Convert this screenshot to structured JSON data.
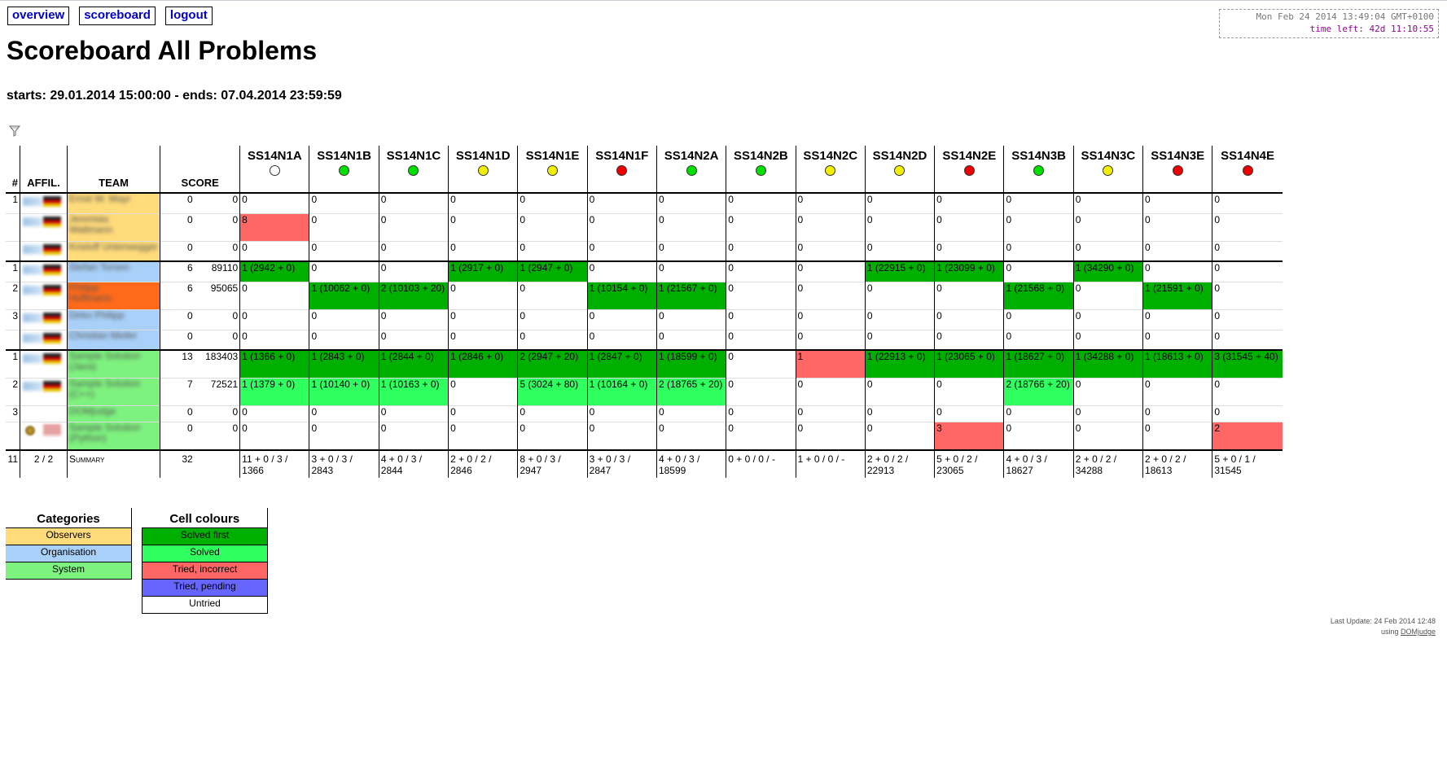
{
  "nav": [
    {
      "label": "overview"
    },
    {
      "label": "scoreboard"
    },
    {
      "label": "logout"
    }
  ],
  "clock": {
    "now": "Mon Feb 24 2014 13:49:04 GMT+0100",
    "left": "time left: 42d 11:10:55"
  },
  "title": "Scoreboard All Problems",
  "times": "starts: 29.01.2014 15:00:00 - ends: 07.04.2014 23:59:59",
  "headers": {
    "rank": "#",
    "affil": "AFFIL.",
    "team": "TEAM",
    "score": "SCORE"
  },
  "problems": [
    {
      "name": "SS14N1A",
      "color": "#ffffff"
    },
    {
      "name": "SS14N1B",
      "color": "#00e000"
    },
    {
      "name": "SS14N1C",
      "color": "#00e000"
    },
    {
      "name": "SS14N1D",
      "color": "#f2f000"
    },
    {
      "name": "SS14N1E",
      "color": "#f2f000"
    },
    {
      "name": "SS14N1F",
      "color": "#ee0000"
    },
    {
      "name": "SS14N2A",
      "color": "#00e000"
    },
    {
      "name": "SS14N2B",
      "color": "#00e000"
    },
    {
      "name": "SS14N2C",
      "color": "#f2f000"
    },
    {
      "name": "SS14N2D",
      "color": "#f2f000"
    },
    {
      "name": "SS14N2E",
      "color": "#ee0000"
    },
    {
      "name": "SS14N3B",
      "color": "#00e000"
    },
    {
      "name": "SS14N3C",
      "color": "#f2f000"
    },
    {
      "name": "SS14N3E",
      "color": "#ee0000"
    },
    {
      "name": "SS14N4E",
      "color": "#ee0000"
    }
  ],
  "rows": [
    {
      "rank": "1",
      "cat": "obs",
      "flag": "de",
      "logo": "blur",
      "team": [
        "Ernst W. Mayr"
      ],
      "points": "0",
      "time": "0",
      "h": 25,
      "end": false,
      "cells": [
        [
          "0",
          ""
        ],
        [
          "0",
          ""
        ],
        [
          "0",
          ""
        ],
        [
          "0",
          ""
        ],
        [
          "0",
          ""
        ],
        [
          "0",
          ""
        ],
        [
          "0",
          ""
        ],
        [
          "0",
          ""
        ],
        [
          "0",
          ""
        ],
        [
          "0",
          ""
        ],
        [
          "0",
          ""
        ],
        [
          "0",
          ""
        ],
        [
          "0",
          ""
        ],
        [
          "0",
          ""
        ],
        [
          "0",
          ""
        ]
      ]
    },
    {
      "rank": "",
      "cat": "obs",
      "flag": "de",
      "logo": "blur",
      "team": [
        "Jeremias",
        "Waltmann"
      ],
      "points": "0",
      "time": "0",
      "h": 34,
      "end": false,
      "cells": [
        [
          "8",
          "ti"
        ],
        [
          "0",
          ""
        ],
        [
          "0",
          ""
        ],
        [
          "0",
          ""
        ],
        [
          "0",
          ""
        ],
        [
          "0",
          ""
        ],
        [
          "0",
          ""
        ],
        [
          "0",
          ""
        ],
        [
          "0",
          ""
        ],
        [
          "0",
          ""
        ],
        [
          "0",
          ""
        ],
        [
          "0",
          ""
        ],
        [
          "0",
          ""
        ],
        [
          "0",
          ""
        ],
        [
          "0",
          ""
        ]
      ]
    },
    {
      "rank": "",
      "cat": "obs",
      "flag": "de",
      "logo": "blur",
      "team": [
        "Kristoff Unterwegger"
      ],
      "points": "0",
      "time": "0",
      "h": 25,
      "end": true,
      "cells": [
        [
          "0",
          ""
        ],
        [
          "0",
          ""
        ],
        [
          "0",
          ""
        ],
        [
          "0",
          ""
        ],
        [
          "0",
          ""
        ],
        [
          "0",
          ""
        ],
        [
          "0",
          ""
        ],
        [
          "0",
          ""
        ],
        [
          "0",
          ""
        ],
        [
          "0",
          ""
        ],
        [
          "0",
          ""
        ],
        [
          "0",
          ""
        ],
        [
          "0",
          ""
        ],
        [
          "0",
          ""
        ],
        [
          "0",
          ""
        ]
      ]
    },
    {
      "rank": "1",
      "cat": "org",
      "flag": "de",
      "logo": "blur",
      "team": [
        "Stefan Torsen"
      ],
      "points": "6",
      "time": "89110",
      "h": 25,
      "end": false,
      "cells": [
        [
          "1 (2942 + 0)",
          "sf"
        ],
        [
          "0",
          ""
        ],
        [
          "0",
          ""
        ],
        [
          "1 (2917 + 0)",
          "sf"
        ],
        [
          "1 (2947 + 0)",
          "sf"
        ],
        [
          "0",
          ""
        ],
        [
          "0",
          ""
        ],
        [
          "0",
          ""
        ],
        [
          "0",
          ""
        ],
        [
          "1 (22915 + 0)",
          "sf"
        ],
        [
          "1 (23099 + 0)",
          "sf"
        ],
        [
          "0",
          ""
        ],
        [
          "1 (34290 + 0)",
          "sf"
        ],
        [
          "0",
          ""
        ],
        [
          "0",
          ""
        ]
      ]
    },
    {
      "rank": "2",
      "cat": "hl",
      "flag": "de",
      "logo": "blur",
      "team": [
        "Philipp",
        "Hoffmann"
      ],
      "points": "6",
      "time": "95065",
      "h": 34,
      "end": false,
      "cells": [
        [
          "0",
          ""
        ],
        [
          "1 (10062 + 0)",
          "sf"
        ],
        [
          "2 (10103 + 20)",
          "sf"
        ],
        [
          "0",
          ""
        ],
        [
          "0",
          ""
        ],
        [
          "1 (10154 + 0)",
          "sf"
        ],
        [
          "1 (21567 + 0)",
          "sf"
        ],
        [
          "0",
          ""
        ],
        [
          "0",
          ""
        ],
        [
          "0",
          ""
        ],
        [
          "0",
          ""
        ],
        [
          "1 (21568 + 0)",
          "sf"
        ],
        [
          "0",
          ""
        ],
        [
          "1 (21591 + 0)",
          "sf"
        ],
        [
          "0",
          ""
        ]
      ]
    },
    {
      "rank": "3",
      "cat": "org",
      "flag": "de",
      "logo": "blur",
      "team": [
        "Dirko Philipp"
      ],
      "points": "0",
      "time": "0",
      "h": 25,
      "end": false,
      "cells": [
        [
          "0",
          ""
        ],
        [
          "0",
          ""
        ],
        [
          "0",
          ""
        ],
        [
          "0",
          ""
        ],
        [
          "0",
          ""
        ],
        [
          "0",
          ""
        ],
        [
          "0",
          ""
        ],
        [
          "0",
          ""
        ],
        [
          "0",
          ""
        ],
        [
          "0",
          ""
        ],
        [
          "0",
          ""
        ],
        [
          "0",
          ""
        ],
        [
          "0",
          ""
        ],
        [
          "0",
          ""
        ],
        [
          "0",
          ""
        ]
      ]
    },
    {
      "rank": "",
      "cat": "org",
      "flag": "de",
      "logo": "blur",
      "team": [
        "Christian Meiler"
      ],
      "points": "0",
      "time": "0",
      "h": 25,
      "end": true,
      "cells": [
        [
          "0",
          ""
        ],
        [
          "0",
          ""
        ],
        [
          "0",
          ""
        ],
        [
          "0",
          ""
        ],
        [
          "0",
          ""
        ],
        [
          "0",
          ""
        ],
        [
          "0",
          ""
        ],
        [
          "0",
          ""
        ],
        [
          "0",
          ""
        ],
        [
          "0",
          ""
        ],
        [
          "0",
          ""
        ],
        [
          "0",
          ""
        ],
        [
          "0",
          ""
        ],
        [
          "0",
          ""
        ],
        [
          "0",
          ""
        ]
      ]
    },
    {
      "rank": "1",
      "cat": "sys",
      "flag": "de",
      "logo": "blur",
      "team": [
        "Sample Solution",
        "(Java)"
      ],
      "points": "13",
      "time": "183403",
      "h": 34,
      "end": false,
      "cells": [
        [
          "1 (1366 + 0)",
          "sf"
        ],
        [
          "1 (2843 + 0)",
          "sf"
        ],
        [
          "1 (2844 + 0)",
          "sf"
        ],
        [
          "1 (2846 + 0)",
          "sf"
        ],
        [
          "2 (2947 + 20)",
          "sf"
        ],
        [
          "1 (2847 + 0)",
          "sf"
        ],
        [
          "1 (18599 + 0)",
          "sf"
        ],
        [
          "0",
          ""
        ],
        [
          "1",
          "ti"
        ],
        [
          "1 (22913 + 0)",
          "sf"
        ],
        [
          "1 (23065 + 0)",
          "sf"
        ],
        [
          "1 (18627 + 0)",
          "sf"
        ],
        [
          "1 (34288 + 0)",
          "sf"
        ],
        [
          "1 (18613 + 0)",
          "sf"
        ],
        [
          "3 (31545 + 40)",
          "sf"
        ]
      ]
    },
    {
      "rank": "2",
      "cat": "sys",
      "flag": "de",
      "logo": "blur",
      "team": [
        "Sample Solution",
        "(C++)"
      ],
      "points": "7",
      "time": "72521",
      "h": 34,
      "end": false,
      "cells": [
        [
          "1 (1379 + 0)",
          "s"
        ],
        [
          "1 (10140 + 0)",
          "s"
        ],
        [
          "1 (10163 + 0)",
          "s"
        ],
        [
          "0",
          ""
        ],
        [
          "5 (3024 + 80)",
          "s"
        ],
        [
          "1 (10164 + 0)",
          "s"
        ],
        [
          "2 (18765 + 20)",
          "s"
        ],
        [
          "0",
          ""
        ],
        [
          "0",
          ""
        ],
        [
          "0",
          ""
        ],
        [
          "0",
          ""
        ],
        [
          "2 (18766 + 20)",
          "s"
        ],
        [
          "0",
          ""
        ],
        [
          "0",
          ""
        ],
        [
          "0",
          ""
        ]
      ]
    },
    {
      "rank": "3",
      "cat": "sys",
      "flag": "none",
      "logo": "none",
      "team": [
        "DOMjudge"
      ],
      "points": "0",
      "time": "0",
      "h": 20,
      "end": false,
      "cells": [
        [
          "0",
          ""
        ],
        [
          "0",
          ""
        ],
        [
          "0",
          ""
        ],
        [
          "0",
          ""
        ],
        [
          "0",
          ""
        ],
        [
          "0",
          ""
        ],
        [
          "0",
          ""
        ],
        [
          "0",
          ""
        ],
        [
          "0",
          ""
        ],
        [
          "0",
          ""
        ],
        [
          "0",
          ""
        ],
        [
          "0",
          ""
        ],
        [
          "0",
          ""
        ],
        [
          "0",
          ""
        ],
        [
          "0",
          ""
        ]
      ]
    },
    {
      "rank": "",
      "cat": "sys",
      "flag": "us",
      "logo": "seal",
      "team": [
        "Sample Solution",
        "(Python)"
      ],
      "points": "0",
      "time": "0",
      "h": 35,
      "end": true,
      "cells": [
        [
          "0",
          ""
        ],
        [
          "0",
          ""
        ],
        [
          "0",
          ""
        ],
        [
          "0",
          ""
        ],
        [
          "0",
          ""
        ],
        [
          "0",
          ""
        ],
        [
          "0",
          ""
        ],
        [
          "0",
          ""
        ],
        [
          "0",
          ""
        ],
        [
          "0",
          ""
        ],
        [
          "3",
          "ti"
        ],
        [
          "0",
          ""
        ],
        [
          "0",
          ""
        ],
        [
          "0",
          ""
        ],
        [
          "2",
          "ti"
        ]
      ]
    }
  ],
  "summary": {
    "rank": "11",
    "affil": "2 / 2",
    "team": "Summary",
    "points": "32",
    "cells": [
      "11 + 0 / 3 / 1366",
      "3 + 0 / 3 / 2843",
      "4 + 0 / 3 / 2844",
      "2 + 0 / 2 / 2846",
      "8 + 0 / 3 / 2947",
      "3 + 0 / 3 / 2847",
      "4 + 0 / 3 / 18599",
      "0 + 0 / 0 / -",
      "1 + 0 / 0 / -",
      "2 + 0 / 2 / 22913",
      "5 + 0 / 2 / 23065",
      "4 + 0 / 3 / 18627",
      "2 + 0 / 2 / 34288",
      "2 + 0 / 2 / 18613",
      "5 + 0 / 1 / 31545"
    ]
  },
  "legend_categories": {
    "title": "Categories",
    "items": [
      {
        "label": "Observers",
        "color": "#ffdb7a"
      },
      {
        "label": "Organisation",
        "color": "#a8d0f8"
      },
      {
        "label": "System",
        "color": "#7ef27e"
      }
    ]
  },
  "legend_colours": {
    "title": "Cell colours",
    "items": [
      {
        "label": "Solved first",
        "color": "#00b000"
      },
      {
        "label": "Solved",
        "color": "#30ff60"
      },
      {
        "label": "Tried, incorrect",
        "color": "#ff6666"
      },
      {
        "label": "Tried, pending",
        "color": "#6666ff"
      },
      {
        "label": "Untried",
        "color": "#ffffff"
      }
    ]
  },
  "footer": {
    "update": "Last Update: 24 Feb 2014 12:48",
    "using": "using",
    "link": "DOMjudge"
  }
}
